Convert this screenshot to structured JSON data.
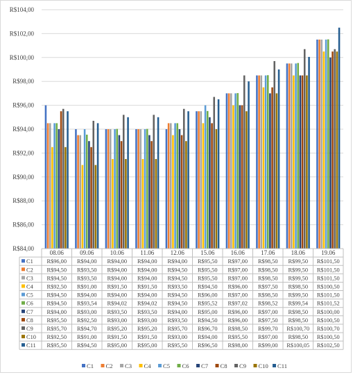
{
  "chart_data": {
    "type": "bar",
    "title": "",
    "xlabel": "",
    "ylabel": "",
    "ylim": [
      84,
      104
    ],
    "y_ticks": [
      "R$84,00",
      "R$86,00",
      "R$88,00",
      "R$90,00",
      "R$92,00",
      "R$94,00",
      "R$96,00",
      "R$98,00",
      "R$100,00",
      "R$102,00",
      "R$104,00"
    ],
    "grid": true,
    "legend_position": "bottom",
    "categories": [
      "08.06",
      "09.06",
      "10.06",
      "11.06",
      "12.06",
      "15.06",
      "16.06",
      "17.06",
      "18.06",
      "19.06"
    ],
    "series": [
      {
        "name": "C1",
        "color": "#4472c4",
        "values": [
          96.0,
          94.0,
          94.0,
          94.0,
          94.0,
          95.5,
          97.0,
          98.5,
          99.5,
          101.5
        ],
        "labels": [
          "R$96,00",
          "R$94,00",
          "R$94,00",
          "R$94,00",
          "R$94,00",
          "R$95,50",
          "R$97,00",
          "R$98,50",
          "R$99,50",
          "R$101,50"
        ]
      },
      {
        "name": "C2",
        "color": "#ed7d31",
        "values": [
          94.5,
          93.5,
          94.0,
          94.0,
          94.5,
          95.5,
          97.0,
          98.5,
          99.5,
          101.5
        ],
        "labels": [
          "R$94,50",
          "R$93,50",
          "R$94,00",
          "R$94,00",
          "R$94,50",
          "R$95,50",
          "R$97,00",
          "R$98,50",
          "R$99,50",
          "R$101,50"
        ]
      },
      {
        "name": "C3",
        "color": "#a5a5a5",
        "values": [
          94.5,
          93.5,
          94.0,
          94.0,
          94.5,
          95.5,
          97.0,
          98.5,
          99.5,
          101.5
        ],
        "labels": [
          "R$94,50",
          "R$93,50",
          "R$94,00",
          "R$94,00",
          "R$94,50",
          "R$95,50",
          "R$97,00",
          "R$98,50",
          "R$99,50",
          "R$101,50"
        ]
      },
      {
        "name": "C4",
        "color": "#ffc000",
        "values": [
          92.5,
          91.0,
          91.5,
          91.5,
          93.5,
          94.5,
          96.0,
          97.5,
          98.5,
          100.5
        ],
        "labels": [
          "R$92,50",
          "R$91,00",
          "R$91,50",
          "R$91,50",
          "R$93,50",
          "R$94,50",
          "R$96,00",
          "R$97,50",
          "R$98,50",
          "R$100,50"
        ]
      },
      {
        "name": "C5",
        "color": "#5b9bd5",
        "values": [
          94.5,
          94.0,
          94.0,
          94.0,
          94.5,
          96.0,
          97.0,
          98.5,
          99.5,
          101.5
        ],
        "labels": [
          "R$94,50",
          "R$94,00",
          "R$94,00",
          "R$94,00",
          "R$94,50",
          "R$96,00",
          "R$97,00",
          "R$98,50",
          "R$99,50",
          "R$101,50"
        ]
      },
      {
        "name": "C6",
        "color": "#70ad47",
        "values": [
          94.5,
          93.54,
          94.02,
          94.02,
          94.5,
          95.52,
          97.02,
          98.52,
          99.54,
          101.52
        ],
        "labels": [
          "R$94,50",
          "R$93,54",
          "R$94,02",
          "R$94,02",
          "R$94,50",
          "R$95,52",
          "R$97,02",
          "R$98,52",
          "R$99,54",
          "R$101,52"
        ]
      },
      {
        "name": "C7",
        "color": "#264478",
        "values": [
          94.0,
          93.0,
          93.5,
          93.5,
          94.0,
          95.0,
          96.0,
          97.0,
          98.5,
          100.0
        ],
        "labels": [
          "R$94,00",
          "R$93,00",
          "R$93,50",
          "R$93,50",
          "R$94,00",
          "R$95,00",
          "R$96,00",
          "R$97,00",
          "R$98,50",
          "R$100,00"
        ]
      },
      {
        "name": "C8",
        "color": "#9e480e",
        "values": [
          95.5,
          92.5,
          93.0,
          93.0,
          93.5,
          94.5,
          96.0,
          97.5,
          98.5,
          100.5
        ],
        "labels": [
          "R$95,50",
          "R$92,50",
          "R$93,00",
          "R$93,00",
          "R$93,50",
          "R$94,50",
          "R$96,00",
          "R$97,50",
          "R$98,50",
          "R$100,50"
        ]
      },
      {
        "name": "C9",
        "color": "#636363",
        "values": [
          95.7,
          94.7,
          95.2,
          95.2,
          95.7,
          96.7,
          98.5,
          99.7,
          100.7,
          100.7
        ],
        "labels": [
          "R$95,70",
          "R$94,70",
          "R$95,20",
          "R$95,20",
          "R$95,70",
          "R$96,70",
          "R$98,50",
          "R$99,70",
          "R$100,70",
          "R$100,70"
        ]
      },
      {
        "name": "C10",
        "color": "#997300",
        "values": [
          92.5,
          91.0,
          91.5,
          91.5,
          93.0,
          94.0,
          95.5,
          97.0,
          98.5,
          100.5
        ],
        "labels": [
          "R$92,50",
          "R$91,00",
          "R$91,50",
          "R$91,50",
          "R$93,00",
          "R$94,00",
          "R$95,50",
          "R$97,00",
          "R$98,50",
          "R$100,50"
        ]
      },
      {
        "name": "C11",
        "color": "#255e91",
        "values": [
          95.5,
          94.5,
          95.0,
          95.0,
          95.5,
          96.5,
          98.0,
          99.0,
          100.05,
          102.5
        ],
        "labels": [
          "R$95,50",
          "R$94,50",
          "R$95,00",
          "R$95,00",
          "R$95,50",
          "R$96,50",
          "R$98,00",
          "R$99,00",
          "R$100,05",
          "R$102,50"
        ]
      }
    ]
  }
}
